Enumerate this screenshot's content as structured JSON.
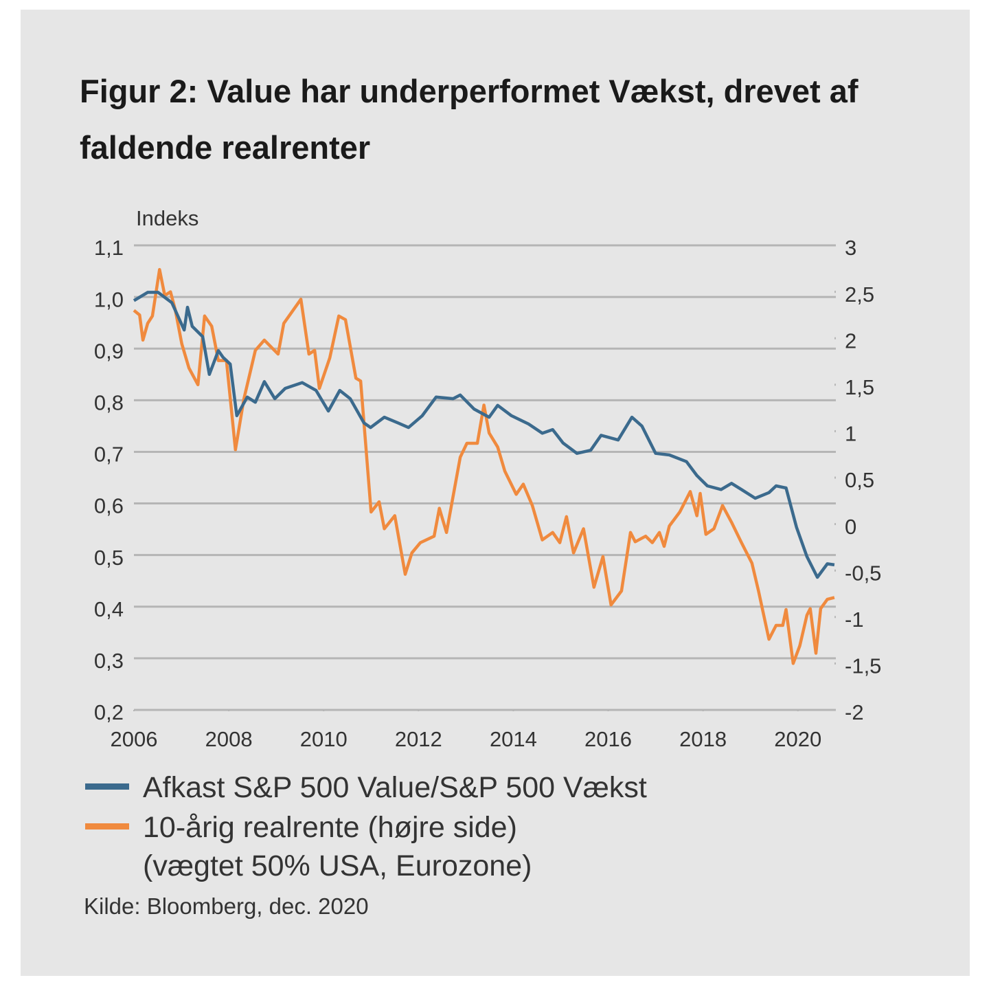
{
  "chart_data": {
    "type": "line",
    "title": "Figur 2: Value har underperformet Vækst, drevet af faldende realrenter",
    "y_label": "Indeks",
    "source": "Kilde: Bloomberg, dec. 2020",
    "xlim": [
      2006,
      2020.8
    ],
    "xticks": [
      2006,
      2008,
      2010,
      2012,
      2014,
      2016,
      2018,
      2020
    ],
    "ylim": [
      0.2,
      1.1
    ],
    "yticks": [
      {
        "value": 0.2,
        "label": "0,2"
      },
      {
        "value": 0.3,
        "label": "0,3"
      },
      {
        "value": 0.4,
        "label": "0,4"
      },
      {
        "value": 0.5,
        "label": "0,5"
      },
      {
        "value": 0.6,
        "label": "0,6"
      },
      {
        "value": 0.7,
        "label": "0,7"
      },
      {
        "value": 0.8,
        "label": "0,8"
      },
      {
        "value": 0.9,
        "label": "0,9"
      },
      {
        "value": 1.0,
        "label": "1,0"
      },
      {
        "value": 1.1,
        "label": "1,1"
      }
    ],
    "y2lim": [
      -2,
      3
    ],
    "y2ticks": [
      -2,
      {
        "value": -1.5,
        "label": "-1,5"
      },
      -1,
      {
        "value": -0.5,
        "label": "-0,5"
      },
      0,
      {
        "value": 0.5,
        "label": "0,5"
      },
      1,
      {
        "value": 1.5,
        "label": "1,5"
      },
      2,
      {
        "value": 2.5,
        "label": "2,5"
      },
      3
    ],
    "grid": true,
    "series": [
      {
        "name": "Afkast S&P 500 Value/S&P 500 Vækst",
        "color": "#3b6a8d",
        "axis": "y",
        "x": [
          2006.0,
          2006.29,
          2006.51,
          2006.8,
          2007.06,
          2007.13,
          2007.23,
          2007.45,
          2007.59,
          2007.78,
          2007.88,
          2008.03,
          2008.17,
          2008.39,
          2008.56,
          2008.75,
          2008.97,
          2009.19,
          2009.55,
          2009.84,
          2010.1,
          2010.34,
          2010.56,
          2010.85,
          2010.99,
          2011.28,
          2011.57,
          2011.79,
          2012.08,
          2012.37,
          2012.73,
          2012.88,
          2013.17,
          2013.49,
          2013.67,
          2013.96,
          2014.32,
          2014.61,
          2014.83,
          2015.05,
          2015.34,
          2015.63,
          2015.85,
          2016.21,
          2016.5,
          2016.71,
          2017.0,
          2017.29,
          2017.65,
          2017.87,
          2018.09,
          2018.38,
          2018.6,
          2018.81,
          2019.1,
          2019.39,
          2019.54,
          2019.75,
          2019.97,
          2020.19,
          2020.41,
          2020.62,
          2020.77
        ],
        "values": [
          0.993,
          1.009,
          1.009,
          0.989,
          0.936,
          0.98,
          0.943,
          0.923,
          0.85,
          0.896,
          0.883,
          0.87,
          0.77,
          0.806,
          0.796,
          0.836,
          0.803,
          0.823,
          0.834,
          0.819,
          0.779,
          0.819,
          0.803,
          0.756,
          0.747,
          0.767,
          0.756,
          0.747,
          0.77,
          0.806,
          0.803,
          0.81,
          0.783,
          0.767,
          0.79,
          0.77,
          0.754,
          0.736,
          0.743,
          0.717,
          0.697,
          0.703,
          0.732,
          0.723,
          0.767,
          0.75,
          0.697,
          0.694,
          0.681,
          0.654,
          0.634,
          0.627,
          0.639,
          0.627,
          0.61,
          0.621,
          0.634,
          0.63,
          0.554,
          0.497,
          0.457,
          0.483,
          0.481
        ]
      },
      {
        "name": "10-årig realrente (højre side)\n(vægtet 50% USA, Eurozone)",
        "color": "#f08a3e",
        "axis": "y2",
        "x": [
          2006.0,
          2006.12,
          2006.19,
          2006.29,
          2006.39,
          2006.54,
          2006.65,
          2006.77,
          2006.87,
          2007.01,
          2007.16,
          2007.35,
          2007.49,
          2007.64,
          2007.78,
          2007.95,
          2008.14,
          2008.32,
          2008.56,
          2008.75,
          2009.04,
          2009.16,
          2009.52,
          2009.69,
          2009.81,
          2009.91,
          2010.13,
          2010.32,
          2010.46,
          2010.68,
          2010.78,
          2011.0,
          2011.17,
          2011.28,
          2011.5,
          2011.72,
          2011.86,
          2012.04,
          2012.33,
          2012.44,
          2012.59,
          2012.88,
          2013.02,
          2013.24,
          2013.38,
          2013.49,
          2013.67,
          2013.82,
          2014.06,
          2014.21,
          2014.4,
          2014.61,
          2014.83,
          2014.98,
          2015.12,
          2015.27,
          2015.48,
          2015.7,
          2015.89,
          2016.06,
          2016.28,
          2016.47,
          2016.57,
          2016.79,
          2016.93,
          2017.08,
          2017.18,
          2017.29,
          2017.51,
          2017.73,
          2017.87,
          2017.94,
          2018.06,
          2018.23,
          2018.41,
          2018.6,
          2018.81,
          2019.03,
          2019.17,
          2019.39,
          2019.54,
          2019.68,
          2019.75,
          2019.9,
          2020.04,
          2020.19,
          2020.26,
          2020.38,
          2020.48,
          2020.62,
          2020.77
        ],
        "values": [
          2.3,
          2.25,
          1.98,
          2.16,
          2.24,
          2.74,
          2.46,
          2.5,
          2.31,
          1.94,
          1.68,
          1.5,
          2.24,
          2.13,
          1.76,
          1.76,
          0.8,
          1.35,
          1.87,
          1.98,
          1.83,
          2.16,
          2.42,
          1.83,
          1.87,
          1.46,
          1.79,
          2.24,
          2.2,
          1.57,
          1.54,
          0.13,
          0.24,
          -0.05,
          0.09,
          -0.54,
          -0.31,
          -0.2,
          -0.13,
          0.17,
          -0.09,
          0.72,
          0.87,
          0.87,
          1.28,
          0.98,
          0.83,
          0.57,
          0.32,
          0.43,
          0.2,
          -0.17,
          -0.09,
          -0.2,
          0.08,
          -0.31,
          -0.05,
          -0.68,
          -0.35,
          -0.87,
          -0.72,
          -0.09,
          -0.19,
          -0.13,
          -0.2,
          -0.09,
          -0.24,
          -0.02,
          0.13,
          0.35,
          0.09,
          0.33,
          -0.11,
          -0.05,
          0.2,
          0.02,
          -0.2,
          -0.42,
          -0.72,
          -1.24,
          -1.09,
          -1.09,
          -0.92,
          -1.5,
          -1.31,
          -0.98,
          -0.91,
          -1.39,
          -0.91,
          -0.81,
          -0.79
        ]
      }
    ]
  }
}
